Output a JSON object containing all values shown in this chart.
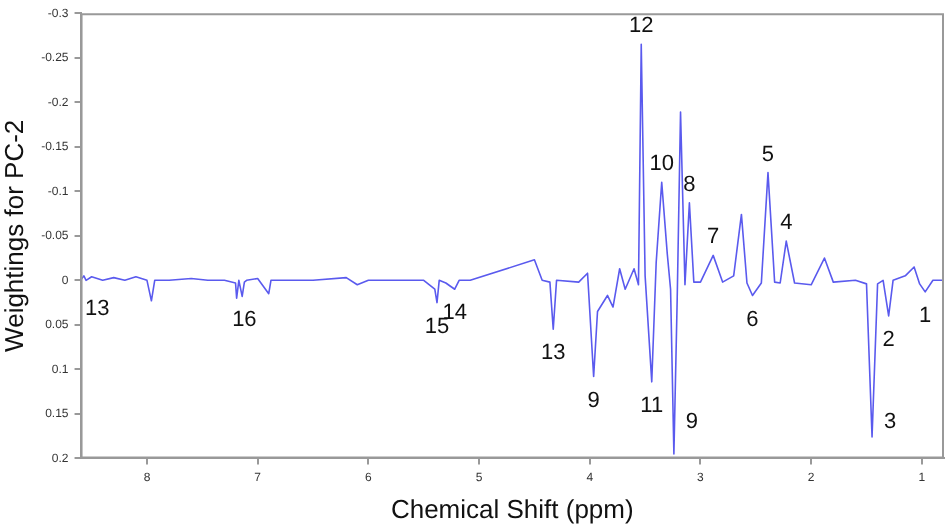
{
  "chart_data": {
    "type": "line",
    "xlabel": "Chemical Shift (ppm)",
    "ylabel": "Weightings for PC-2",
    "xlim": [
      8.6,
      0.8
    ],
    "xticks": [
      8,
      7,
      6,
      5,
      4,
      3,
      2,
      1
    ],
    "ylim": [
      0.2,
      -0.3
    ],
    "yticks": [
      -0.3,
      -0.25,
      -0.2,
      -0.15,
      -0.1,
      -0.05,
      0,
      0.05,
      0.1,
      0.15,
      0.2
    ],
    "grid": false,
    "legend": false,
    "marker": "none",
    "line_style": "solid",
    "series": [
      {
        "color": "#5a5aee",
        "x": [
          8.6,
          8.57,
          8.55,
          8.5,
          8.4,
          8.3,
          8.2,
          8.1,
          8.0,
          7.96,
          7.93,
          7.8,
          7.6,
          7.45,
          7.3,
          7.2,
          7.19,
          7.17,
          7.14,
          7.12,
          7.1,
          7.0,
          6.9,
          6.88,
          6.7,
          6.5,
          6.2,
          6.1,
          6.0,
          5.8,
          5.5,
          5.4,
          5.38,
          5.36,
          5.3,
          5.22,
          5.18,
          5.11,
          5.08,
          4.5,
          4.43,
          4.36,
          4.33,
          4.3,
          4.1,
          4.02,
          3.965,
          3.93,
          3.84,
          3.79,
          3.73,
          3.68,
          3.6,
          3.56,
          3.535,
          3.5,
          3.44,
          3.4,
          3.35,
          3.3,
          3.27,
          3.24,
          3.21,
          3.18,
          3.14,
          3.1,
          3.06,
          3.0,
          2.885,
          2.8,
          2.7,
          2.63,
          2.58,
          2.53,
          2.45,
          2.39,
          2.33,
          2.28,
          2.225,
          2.15,
          2.0,
          1.88,
          1.8,
          1.6,
          1.5,
          1.45,
          1.4,
          1.35,
          1.3,
          1.26,
          1.15,
          1.07,
          1.02,
          0.97,
          0.9,
          0.8
        ],
        "values": [
          0,
          -0.005,
          0,
          -0.004,
          0,
          -0.003,
          0,
          -0.004,
          0,
          0.023,
          0,
          0,
          -0.002,
          0,
          0,
          0.003,
          0.02,
          0,
          0.018,
          0.002,
          0,
          -0.002,
          0.015,
          0,
          0,
          0,
          -0.003,
          0.005,
          0,
          0,
          0,
          0.01,
          0.025,
          0,
          0.003,
          0.01,
          0,
          0,
          0,
          -0.023,
          0,
          0.002,
          0.055,
          0,
          0.002,
          -0.008,
          0.108,
          0.035,
          0.017,
          0.03,
          -0.013,
          0.01,
          -0.013,
          0.005,
          -0.265,
          -0.005,
          0.114,
          -0.02,
          -0.11,
          -0.03,
          0.01,
          0.195,
          0.02,
          -0.189,
          0.005,
          -0.087,
          0.002,
          0.002,
          -0.028,
          0.002,
          -0.005,
          -0.074,
          0.003,
          0.017,
          0.003,
          -0.121,
          0.002,
          0.003,
          -0.044,
          0.003,
          0.005,
          -0.025,
          0.002,
          0,
          0.004,
          0.176,
          0.004,
          0,
          0.04,
          0,
          -0.005,
          -0.015,
          0.004,
          0.013,
          0,
          0
        ]
      }
    ],
    "annotations": [
      {
        "text": "1",
        "x": 0.97,
        "y": 0.013
      },
      {
        "text": "2",
        "x": 1.3,
        "y": 0.04
      },
      {
        "text": "3",
        "x": 1.45,
        "y": 0.176
      },
      {
        "text": "4",
        "x": 2.225,
        "y": -0.044
      },
      {
        "text": "5",
        "x": 2.39,
        "y": -0.121
      },
      {
        "text": "6",
        "x": 2.53,
        "y": 0.017
      },
      {
        "text": "7",
        "x": 2.885,
        "y": -0.028
      },
      {
        "text": "8",
        "x": 3.1,
        "y": -0.087
      },
      {
        "text": "9",
        "x": 3.24,
        "y": 0.195
      },
      {
        "text": "10",
        "x": 3.35,
        "y": -0.11
      },
      {
        "text": "11",
        "x": 3.44,
        "y": 0.114
      },
      {
        "text": "12",
        "x": 3.535,
        "y": -0.265
      },
      {
        "text": "9",
        "x": 3.965,
        "y": 0.108
      },
      {
        "text": "13",
        "x": 4.33,
        "y": 0.055
      },
      {
        "text": "14",
        "x": 5.22,
        "y": 0.01
      },
      {
        "text": "15",
        "x": 5.38,
        "y": 0.025
      },
      {
        "text": "16",
        "x": 7.12,
        "y": 0.018
      },
      {
        "text": "13",
        "x": 8.45,
        "y": 0.005
      }
    ]
  }
}
